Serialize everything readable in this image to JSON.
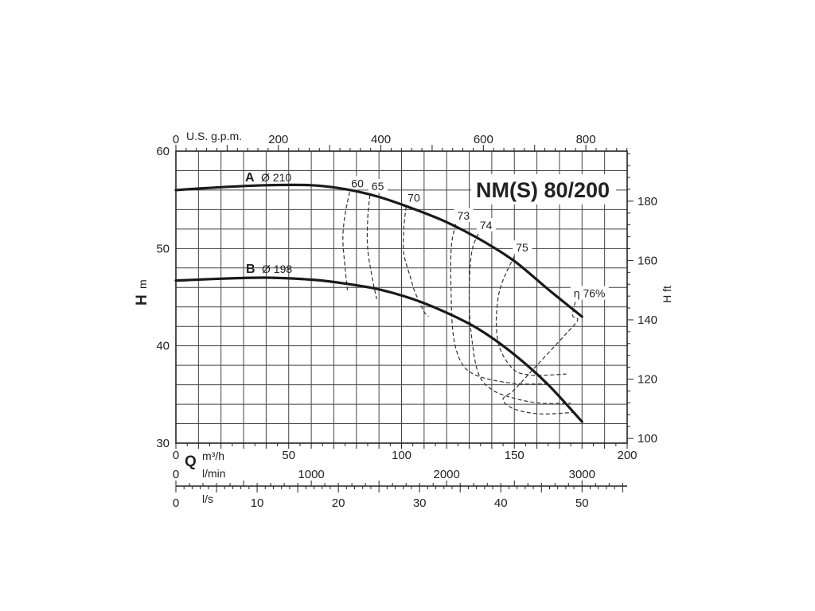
{
  "chart_data": {
    "type": "line",
    "title": "NM(S) 80/200",
    "ylabel": "H",
    "ylabel_unit": "m",
    "ylabel_right": "H ft",
    "xlabel": "Q",
    "xlim": [
      0,
      200
    ],
    "ylim": [
      30,
      60
    ],
    "x_ticks": [
      "0",
      "50",
      "100",
      "150",
      "200"
    ],
    "y_ticks": [
      "30",
      "40",
      "50",
      "60"
    ],
    "y_right_ticks": [
      "100",
      "120",
      "140",
      "160",
      "180"
    ],
    "top_axis": {
      "label": "U.S. g.p.m.",
      "ticks": [
        "0",
        "200",
        "400",
        "600",
        "800"
      ]
    },
    "bottom_axes": [
      {
        "label": "m³/h",
        "ticks": []
      },
      {
        "label": "l/min",
        "ticks": [
          "0",
          "1000",
          "2000",
          "3000"
        ]
      },
      {
        "label": "l/s",
        "ticks": [
          "0",
          "10",
          "20",
          "30",
          "40",
          "50"
        ]
      }
    ],
    "series": [
      {
        "name": "A",
        "diameter_label": "Ø 210",
        "x": [
          0,
          20,
          40,
          60,
          75,
          90,
          105,
          120,
          135,
          150,
          165,
          180
        ],
        "y": [
          56.0,
          56.3,
          56.5,
          56.5,
          56.1,
          55.3,
          54.1,
          52.7,
          50.9,
          48.7,
          45.8,
          43.0
        ]
      },
      {
        "name": "B",
        "diameter_label": "Ø 198",
        "x": [
          0,
          20,
          40,
          60,
          75,
          90,
          105,
          120,
          135,
          150,
          165,
          180
        ],
        "y": [
          46.7,
          46.9,
          47.0,
          46.8,
          46.4,
          45.8,
          44.8,
          43.4,
          41.6,
          39.1,
          36.0,
          32.2
        ]
      }
    ],
    "efficiency_lines": [
      {
        "label": "60",
        "x": [
          77,
          75,
          74,
          75,
          76
        ],
        "y": [
          55.8,
          53.5,
          51,
          48,
          45.7
        ]
      },
      {
        "label": "65",
        "x": [
          86,
          85,
          85,
          87,
          89
        ],
        "y": [
          55.5,
          53,
          50,
          47,
          44.8
        ]
      },
      {
        "label": "70",
        "x": [
          102,
          101,
          101,
          104,
          106,
          110,
          112
        ],
        "y": [
          54.3,
          52,
          49.5,
          47,
          45.5,
          43.5,
          43.0
        ]
      },
      {
        "label": "73",
        "x": [
          124,
          122,
          122,
          123,
          126,
          131,
          140,
          152,
          165
        ],
        "y": [
          52.5,
          50,
          45,
          41,
          38.5,
          37.2,
          36.5,
          36.1,
          36.1
        ]
      },
      {
        "label": "74",
        "x": [
          134,
          131,
          130,
          131,
          134,
          140,
          150,
          162,
          175
        ],
        "y": [
          51.5,
          49.5,
          45,
          41,
          37.2,
          35.5,
          34.6,
          34.1,
          34.1
        ]
      },
      {
        "label": "75",
        "x": [
          150,
          146,
          143,
          142,
          144,
          150,
          157,
          165,
          173
        ],
        "y": [
          49.2,
          47.3,
          45.2,
          42.0,
          39.5,
          37.5,
          37.0,
          37.0,
          37.1
        ]
      },
      {
        "label": "η 76%",
        "x": [
          177,
          176,
          176,
          178,
          172,
          160,
          150,
          145,
          150,
          162,
          178
        ],
        "y": [
          44.5,
          43.5,
          43.0,
          42.6,
          41.0,
          38.0,
          35.5,
          34.5,
          33.5,
          33.0,
          33.2
        ]
      }
    ],
    "grid": true,
    "legend": "none"
  }
}
